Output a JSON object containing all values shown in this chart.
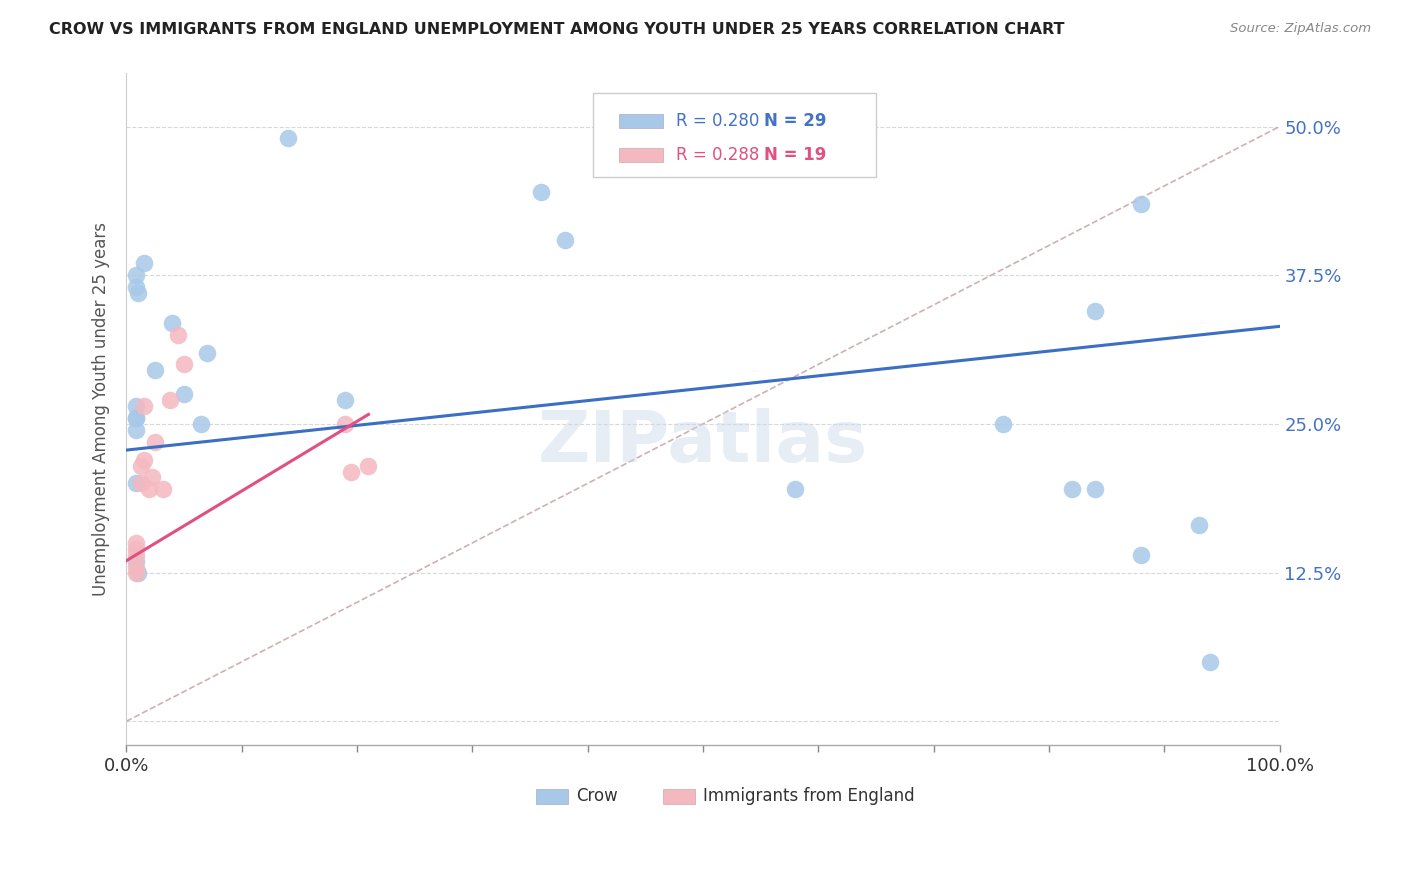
{
  "title": "CROW VS IMMIGRANTS FROM ENGLAND UNEMPLOYMENT AMONG YOUTH UNDER 25 YEARS CORRELATION CHART",
  "source": "Source: ZipAtlas.com",
  "ylabel": "Unemployment Among Youth under 25 years",
  "yticks": [
    0.0,
    0.125,
    0.25,
    0.375,
    0.5
  ],
  "ytick_labels": [
    "",
    "12.5%",
    "25.0%",
    "37.5%",
    "50.0%"
  ],
  "legend_blue_r": "R = 0.280",
  "legend_blue_n": "N = 29",
  "legend_pink_r": "R = 0.288",
  "legend_pink_n": "N = 19",
  "legend_label_blue": "Crow",
  "legend_label_pink": "Immigrants from England",
  "blue_color": "#a8c8e8",
  "pink_color": "#f4b8c0",
  "trend_blue_color": "#3a6fc4",
  "trend_pink_color": "#e05080",
  "ref_line_color": "#d0b0b0",
  "watermark": "ZIPatlas",
  "blue_scatter_x": [
    0.015,
    0.14,
    0.008,
    0.008,
    0.01,
    0.008,
    0.008,
    0.008,
    0.008,
    0.008,
    0.008,
    0.01,
    0.025,
    0.04,
    0.05,
    0.065,
    0.07,
    0.19,
    0.36,
    0.38,
    0.58,
    0.76,
    0.82,
    0.84,
    0.84,
    0.88,
    0.88,
    0.93,
    0.94
  ],
  "blue_scatter_y": [
    0.385,
    0.49,
    0.375,
    0.365,
    0.36,
    0.265,
    0.255,
    0.245,
    0.255,
    0.2,
    0.135,
    0.125,
    0.295,
    0.335,
    0.275,
    0.25,
    0.31,
    0.27,
    0.445,
    0.405,
    0.195,
    0.25,
    0.195,
    0.195,
    0.345,
    0.435,
    0.14,
    0.165,
    0.05
  ],
  "pink_scatter_x": [
    0.008,
    0.008,
    0.008,
    0.008,
    0.008,
    0.013,
    0.013,
    0.015,
    0.015,
    0.02,
    0.022,
    0.025,
    0.032,
    0.038,
    0.045,
    0.05,
    0.19,
    0.195,
    0.21
  ],
  "pink_scatter_y": [
    0.125,
    0.13,
    0.14,
    0.145,
    0.15,
    0.2,
    0.215,
    0.22,
    0.265,
    0.195,
    0.205,
    0.235,
    0.195,
    0.27,
    0.325,
    0.3,
    0.25,
    0.21,
    0.215
  ],
  "blue_trend_x": [
    0.0,
    1.0
  ],
  "blue_trend_y": [
    0.228,
    0.332
  ],
  "pink_trend_x": [
    0.0,
    0.21
  ],
  "pink_trend_y": [
    0.135,
    0.258
  ],
  "ref_line_x": [
    0.0,
    1.0
  ],
  "ref_line_y": [
    0.0,
    0.5
  ],
  "xlim": [
    0.0,
    1.0
  ],
  "ylim": [
    -0.02,
    0.545
  ],
  "background_color": "#ffffff",
  "grid_color": "#d8d8d8"
}
